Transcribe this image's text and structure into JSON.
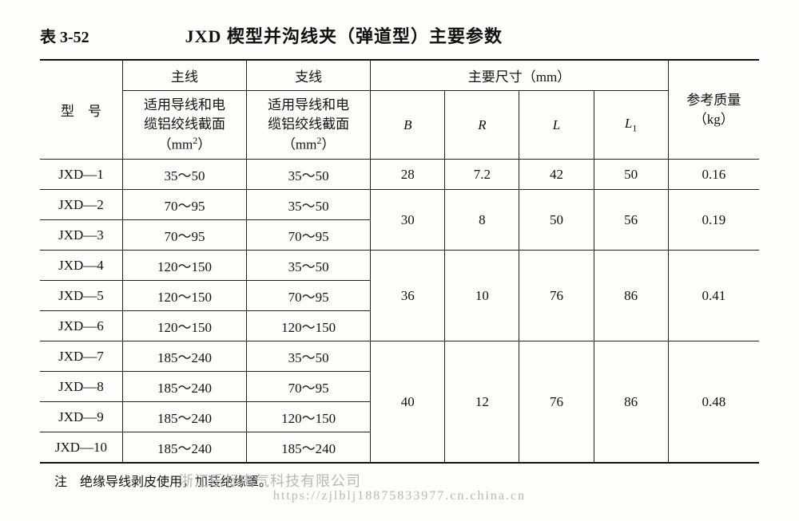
{
  "table_number": "表 3-52",
  "title": "JXD 楔型并沟线夹（弹道型）主要参数",
  "headers": {
    "model": "型　号",
    "main_line": "主线",
    "sub_line": "支线",
    "dims": "主要尺寸（mm）",
    "conductor": "适用导线和电缆铝绞线截面（mm²）",
    "conductor_l1": "适用导线和电",
    "conductor_l2": "缆铝绞线截面",
    "conductor_unit_open": "（mm",
    "conductor_unit_sup": "2",
    "conductor_unit_close": "）",
    "B": "B",
    "R": "R",
    "L": "L",
    "L1_base": "L",
    "L1_sub": "1",
    "mass_l1": "参考质量",
    "mass_l2": "（kg）"
  },
  "rows": [
    {
      "model": "JXD—1",
      "main": "35～50",
      "sub": "35～50"
    },
    {
      "model": "JXD—2",
      "main": "70～95",
      "sub": "35～50"
    },
    {
      "model": "JXD—3",
      "main": "70～95",
      "sub": "70～95"
    },
    {
      "model": "JXD—4",
      "main": "120～150",
      "sub": "35～50"
    },
    {
      "model": "JXD—5",
      "main": "120～150",
      "sub": "70～95"
    },
    {
      "model": "JXD—6",
      "main": "120～150",
      "sub": "120～150"
    },
    {
      "model": "JXD—7",
      "main": "185～240",
      "sub": "35～50"
    },
    {
      "model": "JXD—8",
      "main": "185～240",
      "sub": "70～95"
    },
    {
      "model": "JXD—9",
      "main": "185～240",
      "sub": "120～150"
    },
    {
      "model": "JXD—10",
      "main": "185～240",
      "sub": "185～240"
    }
  ],
  "dim_groups": [
    {
      "span": 1,
      "B": "28",
      "R": "7.2",
      "L": "42",
      "L1": "50",
      "mass": "0.16"
    },
    {
      "span": 2,
      "B": "30",
      "R": "8",
      "L": "50",
      "L1": "56",
      "mass": "0.19"
    },
    {
      "span": 3,
      "B": "36",
      "R": "10",
      "L": "76",
      "L1": "86",
      "mass": "0.41"
    },
    {
      "span": 4,
      "B": "40",
      "R": "12",
      "L": "76",
      "L1": "86",
      "mass": "0.48"
    }
  ],
  "note_label": "注",
  "note_text": "绝缘导线剥皮使用，加装绝缘罩。",
  "watermark_company": "浙江乐标电气科技有限公司",
  "watermark_url": "https://zjlblj18875833977.cn.china.cn",
  "colors": {
    "text": "#111111",
    "border": "#222222",
    "bg": "#fdfdfb",
    "watermark": "#b8b8b8"
  }
}
